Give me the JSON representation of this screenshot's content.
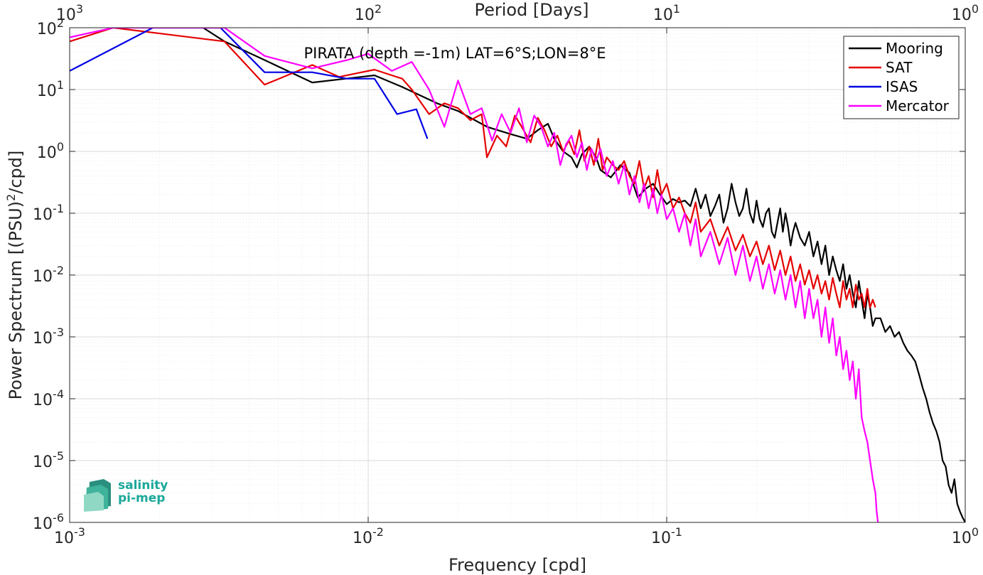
{
  "chart_data": {
    "type": "line",
    "title": "PIRATA (depth =-1m) LAT=6°S;LON=8°E",
    "xlabel": "Frequency [cpd]",
    "ylabel": "Power Spectrum [(PSU)²/cpd]",
    "top_xlabel": "Period [Days]",
    "xscale": "log",
    "yscale": "log",
    "xlim": [
      0.001,
      1
    ],
    "ylim": [
      1e-06,
      100
    ],
    "grid": true,
    "legend_position": "top-right",
    "x_tick_labels": [
      {
        "base": "10",
        "exp": "-3",
        "value": 0.001
      },
      {
        "base": "10",
        "exp": "-2",
        "value": 0.01
      },
      {
        "base": "10",
        "exp": "-1",
        "value": 0.1
      },
      {
        "base": "10",
        "exp": "0",
        "value": 1
      }
    ],
    "top_tick_labels": [
      {
        "base": "10",
        "exp": "3",
        "value": 0.001
      },
      {
        "base": "10",
        "exp": "2",
        "value": 0.01
      },
      {
        "base": "10",
        "exp": "1",
        "value": 0.1
      },
      {
        "base": "10",
        "exp": "0",
        "value": 1
      }
    ],
    "y_tick_labels": [
      {
        "base": "10",
        "exp": "2",
        "value": 100
      },
      {
        "base": "10",
        "exp": "1",
        "value": 10
      },
      {
        "base": "10",
        "exp": "0",
        "value": 1
      },
      {
        "base": "10",
        "exp": "-1",
        "value": 0.1
      },
      {
        "base": "10",
        "exp": "-2",
        "value": 0.01
      },
      {
        "base": "10",
        "exp": "-3",
        "value": 0.001
      },
      {
        "base": "10",
        "exp": "-4",
        "value": 0.0001
      },
      {
        "base": "10",
        "exp": "-5",
        "value": 1e-05
      },
      {
        "base": "10",
        "exp": "-6",
        "value": 1e-06
      }
    ],
    "series": [
      {
        "name": "Mooring",
        "color": "#000000",
        "x": [
          0.0028,
          0.0033,
          0.0045,
          0.0065,
          0.0105,
          0.013,
          0.017,
          0.02,
          0.025,
          0.03,
          0.034,
          0.037,
          0.04,
          0.042,
          0.045,
          0.048,
          0.05,
          0.052,
          0.055,
          0.058,
          0.06,
          0.065,
          0.07,
          0.075,
          0.08,
          0.085,
          0.09,
          0.095,
          0.1,
          0.105,
          0.11,
          0.115,
          0.12,
          0.125,
          0.13,
          0.135,
          0.14,
          0.145,
          0.15,
          0.155,
          0.16,
          0.165,
          0.17,
          0.175,
          0.18,
          0.185,
          0.19,
          0.195,
          0.2,
          0.205,
          0.21,
          0.215,
          0.22,
          0.225,
          0.23,
          0.235,
          0.24,
          0.245,
          0.25,
          0.255,
          0.26,
          0.265,
          0.27,
          0.28,
          0.29,
          0.3,
          0.31,
          0.32,
          0.33,
          0.34,
          0.35,
          0.36,
          0.37,
          0.38,
          0.39,
          0.4,
          0.41,
          0.42,
          0.43,
          0.44,
          0.45,
          0.46,
          0.47,
          0.48,
          0.49,
          0.5,
          0.52,
          0.54,
          0.56,
          0.58,
          0.6,
          0.62,
          0.64,
          0.66,
          0.68,
          0.7,
          0.72,
          0.74,
          0.76,
          0.78,
          0.8,
          0.82,
          0.84,
          0.86,
          0.88,
          0.9,
          0.92,
          0.94,
          0.96,
          0.98,
          1.0
        ],
        "values": [
          100,
          60,
          30,
          13,
          17,
          11,
          6,
          4.5,
          2.5,
          1.9,
          1.6,
          2.2,
          2.8,
          1.6,
          1.0,
          0.8,
          0.55,
          0.9,
          1.2,
          0.8,
          0.5,
          0.38,
          0.6,
          0.45,
          0.18,
          0.25,
          0.3,
          0.2,
          0.14,
          0.17,
          0.15,
          0.16,
          0.13,
          0.25,
          0.12,
          0.2,
          0.09,
          0.13,
          0.2,
          0.07,
          0.12,
          0.3,
          0.15,
          0.09,
          0.12,
          0.25,
          0.1,
          0.07,
          0.16,
          0.08,
          0.06,
          0.1,
          0.12,
          0.05,
          0.04,
          0.07,
          0.12,
          0.05,
          0.1,
          0.06,
          0.03,
          0.05,
          0.07,
          0.04,
          0.03,
          0.05,
          0.02,
          0.035,
          0.015,
          0.03,
          0.01,
          0.02,
          0.012,
          0.008,
          0.015,
          0.006,
          0.01,
          0.005,
          0.003,
          0.008,
          0.004,
          0.002,
          0.005,
          0.003,
          0.0015,
          0.002,
          0.002,
          0.0012,
          0.0015,
          0.001,
          0.0012,
          0.0008,
          0.0006,
          0.0005,
          0.0004,
          0.00025,
          0.00015,
          0.0001,
          6e-05,
          4e-05,
          3e-05,
          2e-05,
          1e-05,
          8e-06,
          4e-06,
          3e-06,
          5e-06,
          2e-06,
          1.5e-06,
          1.2e-06,
          1e-06
        ]
      },
      {
        "name": "SAT",
        "color": "#e50000",
        "x": [
          0.001,
          0.0014,
          0.0033,
          0.0045,
          0.0065,
          0.008,
          0.0105,
          0.012,
          0.013,
          0.014,
          0.016,
          0.018,
          0.02,
          0.022,
          0.024,
          0.025,
          0.027,
          0.029,
          0.031,
          0.033,
          0.035,
          0.037,
          0.039,
          0.041,
          0.043,
          0.045,
          0.047,
          0.049,
          0.051,
          0.053,
          0.055,
          0.057,
          0.059,
          0.061,
          0.063,
          0.066,
          0.069,
          0.072,
          0.075,
          0.078,
          0.081,
          0.084,
          0.087,
          0.09,
          0.093,
          0.096,
          0.1,
          0.105,
          0.11,
          0.115,
          0.12,
          0.125,
          0.13,
          0.14,
          0.15,
          0.16,
          0.17,
          0.18,
          0.19,
          0.2,
          0.21,
          0.22,
          0.23,
          0.24,
          0.25,
          0.26,
          0.27,
          0.28,
          0.29,
          0.3,
          0.31,
          0.32,
          0.33,
          0.34,
          0.35,
          0.36,
          0.37,
          0.38,
          0.39,
          0.4,
          0.41,
          0.42,
          0.43,
          0.44,
          0.45,
          0.46,
          0.47,
          0.48,
          0.49,
          0.5
        ],
        "values": [
          60,
          100,
          60,
          12,
          25,
          16,
          21,
          17,
          15,
          10,
          4,
          6,
          5,
          3.2,
          4,
          0.8,
          1.8,
          1.2,
          3.8,
          2.3,
          1.4,
          3.5,
          2.2,
          1.2,
          1.8,
          1.0,
          1.5,
          0.9,
          2.2,
          0.7,
          1.2,
          0.6,
          1.6,
          0.5,
          0.8,
          0.6,
          0.5,
          0.7,
          0.4,
          0.3,
          0.7,
          0.25,
          0.4,
          0.18,
          0.5,
          0.2,
          0.3,
          0.12,
          0.18,
          0.1,
          0.07,
          0.15,
          0.05,
          0.08,
          0.03,
          0.06,
          0.025,
          0.045,
          0.02,
          0.035,
          0.015,
          0.03,
          0.012,
          0.025,
          0.01,
          0.02,
          0.008,
          0.015,
          0.007,
          0.012,
          0.006,
          0.01,
          0.005,
          0.008,
          0.004,
          0.009,
          0.005,
          0.003,
          0.008,
          0.004,
          0.006,
          0.003,
          0.007,
          0.004,
          0.005,
          0.003,
          0.006,
          0.003,
          0.004,
          0.003
        ]
      },
      {
        "name": "ISAS",
        "color": "#0000e5",
        "x": [
          0.001,
          0.0019,
          0.0032,
          0.0045,
          0.0065,
          0.0085,
          0.0105,
          0.0125,
          0.0145,
          0.0158
        ],
        "values": [
          20,
          100,
          100,
          19,
          19,
          15,
          15,
          4,
          4.8,
          1.6
        ]
      },
      {
        "name": "Mercator",
        "color": "#ff00ff",
        "x": [
          0.001,
          0.0014,
          0.0033,
          0.0045,
          0.0065,
          0.0085,
          0.01,
          0.012,
          0.014,
          0.016,
          0.018,
          0.02,
          0.022,
          0.024,
          0.026,
          0.028,
          0.03,
          0.032,
          0.034,
          0.036,
          0.038,
          0.04,
          0.042,
          0.044,
          0.046,
          0.048,
          0.05,
          0.052,
          0.054,
          0.056,
          0.058,
          0.06,
          0.063,
          0.066,
          0.069,
          0.072,
          0.075,
          0.078,
          0.081,
          0.084,
          0.087,
          0.09,
          0.093,
          0.096,
          0.1,
          0.105,
          0.11,
          0.115,
          0.12,
          0.125,
          0.13,
          0.14,
          0.15,
          0.16,
          0.17,
          0.18,
          0.19,
          0.2,
          0.21,
          0.22,
          0.23,
          0.24,
          0.25,
          0.26,
          0.27,
          0.28,
          0.29,
          0.3,
          0.31,
          0.32,
          0.33,
          0.34,
          0.35,
          0.36,
          0.37,
          0.38,
          0.39,
          0.4,
          0.41,
          0.42,
          0.43,
          0.44,
          0.45,
          0.46,
          0.47,
          0.48,
          0.49,
          0.5,
          0.505,
          0.51
        ],
        "values": [
          70,
          100,
          100,
          35,
          22,
          30,
          38,
          20,
          28,
          10,
          2.5,
          14,
          4,
          5,
          1.5,
          4,
          2,
          5,
          1.4,
          3.8,
          2.5,
          1.2,
          2,
          0.6,
          1.3,
          1.8,
          0.8,
          1.4,
          0.5,
          1.1,
          0.7,
          1.1,
          0.4,
          0.7,
          0.3,
          0.6,
          0.2,
          0.4,
          0.15,
          0.3,
          0.12,
          0.25,
          0.1,
          0.2,
          0.08,
          0.12,
          0.05,
          0.1,
          0.03,
          0.08,
          0.02,
          0.05,
          0.015,
          0.04,
          0.01,
          0.03,
          0.008,
          0.02,
          0.006,
          0.015,
          0.005,
          0.012,
          0.004,
          0.01,
          0.003,
          0.008,
          0.002,
          0.006,
          0.002,
          0.004,
          0.001,
          0.003,
          0.0008,
          0.002,
          0.0005,
          0.001,
          0.0003,
          0.0006,
          0.0002,
          0.0004,
          0.0001,
          0.0003,
          5e-05,
          3e-05,
          2e-05,
          1e-05,
          5e-06,
          3e-06,
          1.5e-06,
          1e-06
        ]
      }
    ]
  },
  "logo": {
    "line1": "salinity",
    "line2": "pi-mep"
  }
}
